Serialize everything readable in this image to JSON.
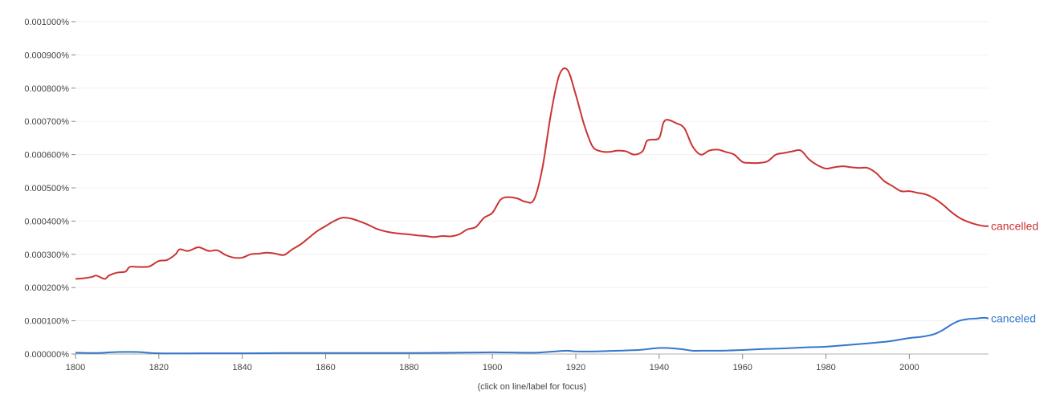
{
  "footer_note": "(click on line/label for focus)",
  "chart_data": {
    "type": "line",
    "x_ticks": [
      1800,
      1820,
      1840,
      1860,
      1880,
      1900,
      1920,
      1940,
      1960,
      1980,
      2000
    ],
    "y_ticks": [
      "0.000000%",
      "0.000100%",
      "0.000200%",
      "0.000300%",
      "0.000400%",
      "0.000500%",
      "0.000600%",
      "0.000700%",
      "0.000800%",
      "0.000900%",
      "0.001000%"
    ],
    "xlim": [
      1800,
      2019
    ],
    "ylim": [
      0,
      0.001
    ],
    "grid": true,
    "series": [
      {
        "name": "cancelled",
        "color": "#cc3333",
        "x": [
          1800,
          1802,
          1804,
          1805,
          1807,
          1808,
          1810,
          1812,
          1813,
          1815,
          1817,
          1818,
          1820,
          1822,
          1824,
          1825,
          1827,
          1829,
          1830,
          1832,
          1834,
          1836,
          1838,
          1840,
          1842,
          1844,
          1846,
          1848,
          1850,
          1852,
          1854,
          1856,
          1858,
          1860,
          1862,
          1864,
          1866,
          1868,
          1870,
          1872,
          1874,
          1876,
          1878,
          1880,
          1882,
          1884,
          1886,
          1888,
          1890,
          1892,
          1894,
          1896,
          1898,
          1900,
          1902,
          1904,
          1906,
          1908,
          1910,
          1912,
          1914,
          1916,
          1918,
          1920,
          1922,
          1924,
          1926,
          1928,
          1930,
          1932,
          1934,
          1936,
          1937,
          1938,
          1940,
          1941,
          1942,
          1944,
          1946,
          1948,
          1950,
          1952,
          1954,
          1956,
          1958,
          1960,
          1962,
          1964,
          1966,
          1968,
          1970,
          1972,
          1974,
          1976,
          1978,
          1980,
          1982,
          1984,
          1986,
          1988,
          1990,
          1992,
          1994,
          1996,
          1998,
          2000,
          2002,
          2004,
          2006,
          2008,
          2010,
          2012,
          2014,
          2016,
          2018,
          2019
        ],
        "values": [
          0.000226,
          0.000228,
          0.000232,
          0.000236,
          0.000226,
          0.000236,
          0.000245,
          0.000248,
          0.000262,
          0.000262,
          0.000262,
          0.000265,
          0.00028,
          0.000283,
          0.0003,
          0.000315,
          0.00031,
          0.00032,
          0.00032,
          0.00031,
          0.000312,
          0.000298,
          0.00029,
          0.00029,
          0.0003,
          0.000302,
          0.000305,
          0.000302,
          0.000298,
          0.000315,
          0.00033,
          0.00035,
          0.00037,
          0.000385,
          0.0004,
          0.00041,
          0.000408,
          0.0004,
          0.00039,
          0.000378,
          0.00037,
          0.000365,
          0.000362,
          0.00036,
          0.000357,
          0.000355,
          0.000352,
          0.000355,
          0.000354,
          0.00036,
          0.000375,
          0.000382,
          0.00041,
          0.000425,
          0.000465,
          0.000472,
          0.000468,
          0.000458,
          0.000465,
          0.00056,
          0.00072,
          0.000838,
          0.000855,
          0.00078,
          0.00069,
          0.000625,
          0.00061,
          0.000608,
          0.000612,
          0.00061,
          0.0006,
          0.00061,
          0.00064,
          0.000645,
          0.00065,
          0.000695,
          0.000705,
          0.000695,
          0.00068,
          0.000625,
          0.0006,
          0.000612,
          0.000615,
          0.000608,
          0.0006,
          0.000578,
          0.000575,
          0.000575,
          0.00058,
          0.0006,
          0.000605,
          0.00061,
          0.000612,
          0.000585,
          0.000568,
          0.000558,
          0.000562,
          0.000565,
          0.000562,
          0.00056,
          0.00056,
          0.000545,
          0.00052,
          0.000505,
          0.00049,
          0.00049,
          0.000485,
          0.00048,
          0.000468,
          0.00045,
          0.000428,
          0.00041,
          0.000398,
          0.00039,
          0.000385,
          0.000385
        ]
      },
      {
        "name": "canceled",
        "color": "#3377cc",
        "x": [
          1800,
          1805,
          1810,
          1815,
          1820,
          1830,
          1840,
          1850,
          1860,
          1870,
          1880,
          1890,
          1900,
          1910,
          1915,
          1918,
          1920,
          1925,
          1930,
          1935,
          1938,
          1940,
          1942,
          1945,
          1948,
          1950,
          1955,
          1960,
          1965,
          1970,
          1975,
          1980,
          1985,
          1990,
          1995,
          2000,
          2003,
          2006,
          2008,
          2010,
          2012,
          2014,
          2016,
          2018,
          2019
        ],
        "values": [
          4e-06,
          3e-06,
          6e-06,
          6e-06,
          2e-06,
          2e-06,
          2e-06,
          3e-06,
          3e-06,
          3e-06,
          3e-06,
          4e-06,
          5e-06,
          4e-06,
          8e-06,
          1e-05,
          8e-06,
          8e-06,
          1e-05,
          1.2e-05,
          1.6e-05,
          1.8e-05,
          1.8e-05,
          1.5e-05,
          1e-05,
          1e-05,
          1e-05,
          1.2e-05,
          1.5e-05,
          1.7e-05,
          2e-05,
          2.2e-05,
          2.7e-05,
          3.2e-05,
          3.8e-05,
          4.8e-05,
          5.2e-05,
          6e-05,
          7.2e-05,
          8.8e-05,
          0.0001,
          0.000105,
          0.000107,
          0.000109,
          0.000107
        ]
      }
    ]
  }
}
